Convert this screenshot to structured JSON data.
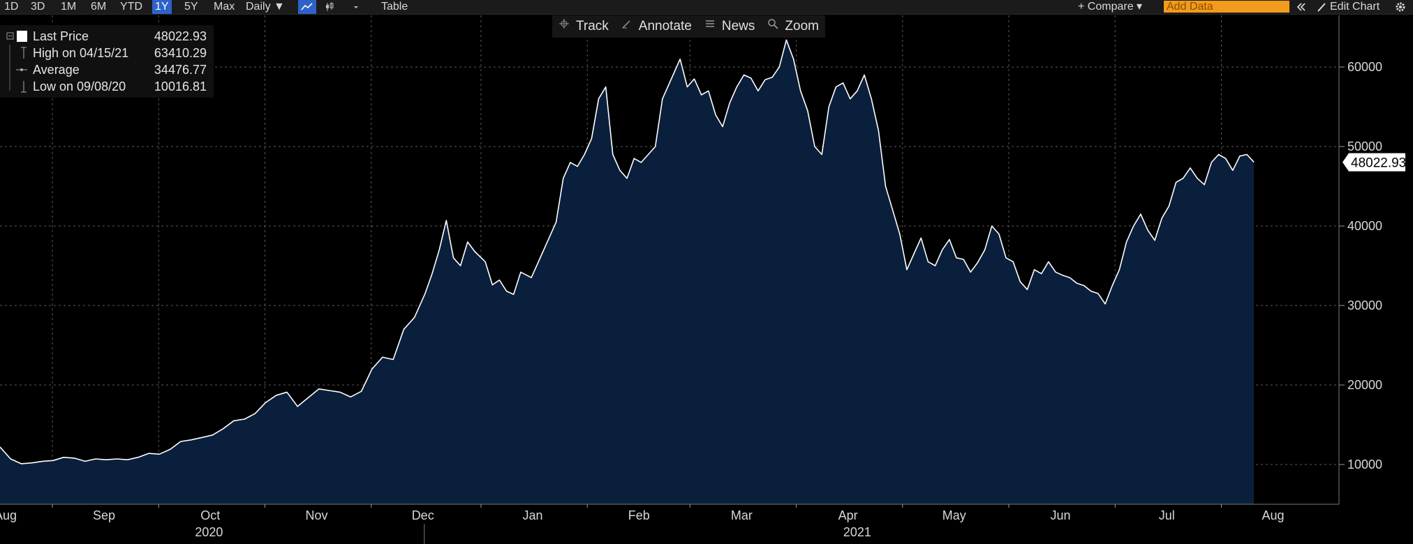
{
  "toolbar": {
    "ranges": [
      "1D",
      "3D",
      "1M",
      "6M",
      "YTD",
      "1Y",
      "5Y",
      "Max"
    ],
    "active_range": "1Y",
    "frequency": "Daily ▼",
    "table_label": "Table",
    "compare_label": "+ Compare ▾",
    "add_data_placeholder": "Add Data",
    "edit_chart_label": "Edit Chart"
  },
  "chart_tools": {
    "track": "Track",
    "annotate": "Annotate",
    "news": "News",
    "zoom": "Zoom"
  },
  "legend": [
    {
      "name": "Last Price",
      "value": "48022.93"
    },
    {
      "name": "High on 04/15/21",
      "value": "63410.29"
    },
    {
      "name": "Average",
      "value": "34476.77"
    },
    {
      "name": "Low on 09/08/20",
      "value": "10016.81"
    }
  ],
  "colors": {
    "fill": "#0a1f3c",
    "line": "#ffffff",
    "accent": "#2e62c9",
    "add_data": "#f39b1c"
  },
  "chart_data": {
    "type": "area",
    "title": "",
    "xlabel": "",
    "ylabel": "",
    "ylim": [
      5000,
      66500
    ],
    "grid": true,
    "last_value_label": "48022.93",
    "yticks": [
      10000,
      20000,
      30000,
      40000,
      50000,
      60000
    ],
    "ytick_labels": [
      "10000",
      "20000",
      "30000",
      "40000",
      "50000",
      "60000"
    ],
    "x_range": [
      0,
      378
    ],
    "month_labels": [
      {
        "label": "Aug",
        "x": 0
      },
      {
        "label": "Sep",
        "x": 14
      },
      {
        "label": "Oct",
        "x": 44
      },
      {
        "label": "Nov",
        "x": 74
      },
      {
        "label": "Dec",
        "x": 104
      },
      {
        "label": "Jan",
        "x": 135
      },
      {
        "label": "Feb",
        "x": 165
      },
      {
        "label": "Mar",
        "x": 194
      },
      {
        "label": "Apr",
        "x": 224
      },
      {
        "label": "May",
        "x": 254
      },
      {
        "label": "Jun",
        "x": 284
      },
      {
        "label": "Jul",
        "x": 314
      },
      {
        "label": "Aug",
        "x": 344
      }
    ],
    "year_labels": [
      {
        "label": "2020",
        "x": 59
      },
      {
        "label": "2021",
        "x": 242
      }
    ],
    "year_divider_x": 119,
    "series": [
      {
        "name": "Last Price",
        "points": [
          [
            0,
            12200
          ],
          [
            3,
            10700
          ],
          [
            6,
            10100
          ],
          [
            9,
            10200
          ],
          [
            12,
            10400
          ],
          [
            15,
            10500
          ],
          [
            18,
            10900
          ],
          [
            21,
            10800
          ],
          [
            24,
            10400
          ],
          [
            27,
            10700
          ],
          [
            30,
            10600
          ],
          [
            33,
            10700
          ],
          [
            36,
            10600
          ],
          [
            39,
            10900
          ],
          [
            42,
            11400
          ],
          [
            45,
            11300
          ],
          [
            48,
            11900
          ],
          [
            51,
            12900
          ],
          [
            54,
            13100
          ],
          [
            57,
            13400
          ],
          [
            60,
            13700
          ],
          [
            63,
            14500
          ],
          [
            66,
            15500
          ],
          [
            69,
            15700
          ],
          [
            72,
            16400
          ],
          [
            75,
            17800
          ],
          [
            78,
            18700
          ],
          [
            81,
            19100
          ],
          [
            84,
            17300
          ],
          [
            87,
            18400
          ],
          [
            90,
            19500
          ],
          [
            93,
            19300
          ],
          [
            96,
            19100
          ],
          [
            99,
            18500
          ],
          [
            102,
            19200
          ],
          [
            105,
            22000
          ],
          [
            108,
            23500
          ],
          [
            111,
            23200
          ],
          [
            114,
            27000
          ],
          [
            117,
            28500
          ],
          [
            120,
            31500
          ],
          [
            122,
            34000
          ],
          [
            124,
            37000
          ],
          [
            126,
            40700
          ],
          [
            128,
            36000
          ],
          [
            130,
            35000
          ],
          [
            132,
            38000
          ],
          [
            134,
            36800
          ],
          [
            137,
            35500
          ],
          [
            139,
            32600
          ],
          [
            141,
            33200
          ],
          [
            143,
            31800
          ],
          [
            145,
            31400
          ],
          [
            147,
            34200
          ],
          [
            150,
            33500
          ],
          [
            153,
            36500
          ],
          [
            155,
            38500
          ],
          [
            157,
            40500
          ],
          [
            159,
            46000
          ],
          [
            161,
            48000
          ],
          [
            163,
            47500
          ],
          [
            165,
            49000
          ],
          [
            167,
            51000
          ],
          [
            169,
            56000
          ],
          [
            171,
            57500
          ],
          [
            173,
            49000
          ],
          [
            175,
            47000
          ],
          [
            177,
            46000
          ],
          [
            179,
            48500
          ],
          [
            181,
            48000
          ],
          [
            183,
            49000
          ],
          [
            185,
            50000
          ],
          [
            187,
            56000
          ],
          [
            190,
            59000
          ],
          [
            192,
            61000
          ],
          [
            194,
            57500
          ],
          [
            196,
            58500
          ],
          [
            198,
            56500
          ],
          [
            200,
            57000
          ],
          [
            202,
            54000
          ],
          [
            204,
            52500
          ],
          [
            206,
            55500
          ],
          [
            208,
            57500
          ],
          [
            210,
            59000
          ],
          [
            212,
            58600
          ],
          [
            214,
            57000
          ],
          [
            216,
            58400
          ],
          [
            218,
            58700
          ],
          [
            220,
            60000
          ],
          [
            222,
            63400
          ],
          [
            224,
            61000
          ],
          [
            226,
            57000
          ],
          [
            228,
            54500
          ],
          [
            230,
            50000
          ],
          [
            232,
            49000
          ],
          [
            234,
            55000
          ],
          [
            236,
            57500
          ],
          [
            238,
            58000
          ],
          [
            240,
            56000
          ],
          [
            242,
            57000
          ],
          [
            244,
            59000
          ],
          [
            246,
            56000
          ],
          [
            248,
            52000
          ],
          [
            250,
            45000
          ],
          [
            252,
            42000
          ],
          [
            254,
            39000
          ],
          [
            256,
            34500
          ],
          [
            258,
            36500
          ],
          [
            260,
            38500
          ],
          [
            262,
            35500
          ],
          [
            264,
            35000
          ],
          [
            266,
            37000
          ],
          [
            268,
            38300
          ],
          [
            270,
            36000
          ],
          [
            272,
            35800
          ],
          [
            274,
            34200
          ],
          [
            276,
            35400
          ],
          [
            278,
            37000
          ],
          [
            280,
            40000
          ],
          [
            282,
            39000
          ],
          [
            284,
            36000
          ],
          [
            286,
            35500
          ],
          [
            288,
            33000
          ],
          [
            290,
            32000
          ],
          [
            292,
            34500
          ],
          [
            294,
            34000
          ],
          [
            296,
            35500
          ],
          [
            298,
            34200
          ],
          [
            300,
            33800
          ],
          [
            302,
            33500
          ],
          [
            304,
            32800
          ],
          [
            306,
            32500
          ],
          [
            308,
            31800
          ],
          [
            310,
            31500
          ],
          [
            312,
            30200
          ],
          [
            314,
            32500
          ],
          [
            316,
            34500
          ],
          [
            318,
            38000
          ],
          [
            320,
            40000
          ],
          [
            322,
            41500
          ],
          [
            324,
            39500
          ],
          [
            326,
            38200
          ],
          [
            328,
            41000
          ],
          [
            330,
            42500
          ],
          [
            332,
            45500
          ],
          [
            334,
            46000
          ],
          [
            336,
            47300
          ],
          [
            338,
            46000
          ],
          [
            340,
            45200
          ],
          [
            342,
            48000
          ],
          [
            344,
            49000
          ],
          [
            346,
            48500
          ],
          [
            348,
            47000
          ],
          [
            350,
            48800
          ],
          [
            352,
            49000
          ],
          [
            354,
            48022
          ]
        ]
      }
    ]
  }
}
